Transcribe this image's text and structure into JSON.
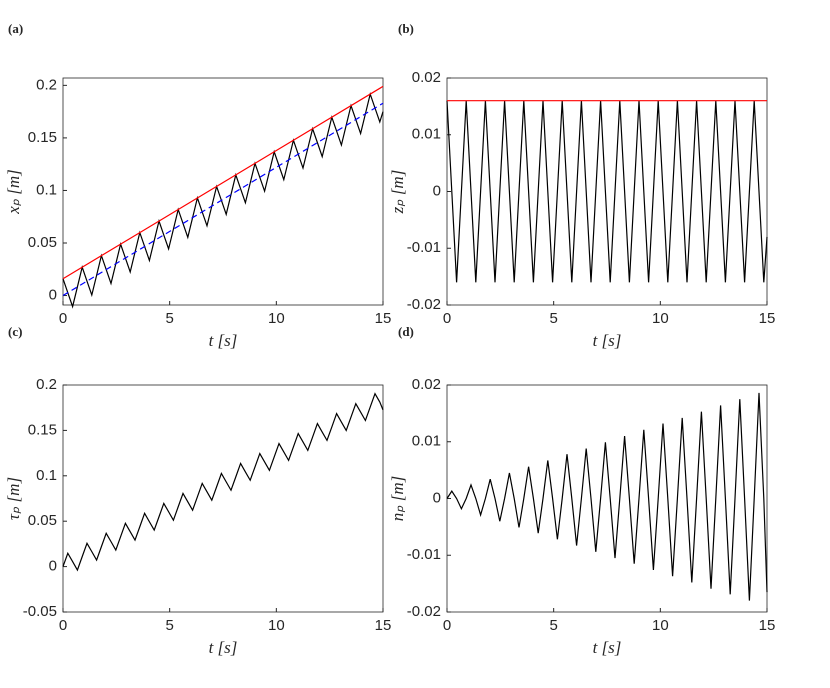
{
  "chart_data": [
    {
      "type": "line",
      "label": "(a)",
      "xlabel": "t [s]",
      "ylabel": "xₚ [m]",
      "xlim": [
        0,
        15
      ],
      "ylim": [
        -0.009,
        0.207
      ],
      "xticks": [
        0,
        5,
        10,
        15
      ],
      "yticks": [
        0,
        0.05,
        0.1,
        0.15,
        0.2
      ],
      "series": [
        {
          "color": "#000000",
          "style": "solid",
          "x": [
            0,
            0.225,
            0.45,
            0.675,
            0.9,
            1.125,
            1.35,
            1.575,
            1.8,
            2.025,
            2.25,
            2.475,
            2.7,
            2.925,
            3.15,
            3.375,
            3.6,
            3.825,
            4.05,
            4.275,
            4.5,
            4.725,
            4.95,
            5.175,
            5.4,
            5.625,
            5.85,
            6.075,
            6.3,
            6.525,
            6.75,
            6.975,
            7.2,
            7.425,
            7.65,
            7.875,
            8.1,
            8.325,
            8.55,
            8.775,
            9,
            9.225,
            9.45,
            9.675,
            9.9,
            10.125,
            10.35,
            10.575,
            10.8,
            11.025,
            11.25,
            11.475,
            11.7,
            11.925,
            12.15,
            12.375,
            12.6,
            12.825,
            13.05,
            13.275,
            13.5,
            13.725,
            13.95,
            14.175,
            14.4,
            14.625,
            14.85,
            15
          ],
          "values": [
            0.016,
            0.0027,
            -0.0105,
            0.0082,
            0.027,
            0.0137,
            0.0005,
            0.0192,
            0.038,
            0.0247,
            0.0115,
            0.0302,
            0.0489,
            0.0357,
            0.0224,
            0.0412,
            0.0599,
            0.0467,
            0.0334,
            0.0522,
            0.0709,
            0.0576,
            0.0444,
            0.0631,
            0.0819,
            0.0686,
            0.0554,
            0.0741,
            0.0929,
            0.0796,
            0.0664,
            0.0851,
            0.1038,
            0.0906,
            0.0773,
            0.0961,
            0.1148,
            0.1016,
            0.0883,
            0.1071,
            0.1258,
            0.1125,
            0.0993,
            0.118,
            0.1368,
            0.1235,
            0.1103,
            0.129,
            0.1478,
            0.1345,
            0.1213,
            0.14,
            0.1587,
            0.1455,
            0.1322,
            0.151,
            0.1697,
            0.1565,
            0.1432,
            0.162,
            0.1807,
            0.1674,
            0.1542,
            0.1729,
            0.1917,
            0.1784,
            0.1652,
            0.175
          ]
        },
        {
          "color": "#ff0000",
          "style": "solid",
          "x": [
            0,
            15
          ],
          "values": [
            0.016,
            0.199
          ]
        },
        {
          "color": "#0000ff",
          "style": "dashed",
          "x": [
            0,
            15
          ],
          "values": [
            0,
            0.183
          ]
        }
      ]
    },
    {
      "type": "line",
      "label": "(b)",
      "xlabel": "t [s]",
      "ylabel": "zₚ [m]",
      "xlim": [
        0,
        15
      ],
      "ylim": [
        -0.02,
        0.02
      ],
      "xticks": [
        0,
        5,
        10,
        15
      ],
      "yticks": [
        -0.02,
        -0.01,
        0,
        0.01,
        0.02
      ],
      "series": [
        {
          "color": "#000000",
          "style": "solid",
          "x": [
            0,
            0.225,
            0.45,
            0.675,
            0.9,
            1.125,
            1.35,
            1.575,
            1.8,
            2.025,
            2.25,
            2.475,
            2.7,
            2.925,
            3.15,
            3.375,
            3.6,
            3.825,
            4.05,
            4.275,
            4.5,
            4.725,
            4.95,
            5.175,
            5.4,
            5.625,
            5.85,
            6.075,
            6.3,
            6.525,
            6.75,
            6.975,
            7.2,
            7.425,
            7.65,
            7.875,
            8.1,
            8.325,
            8.55,
            8.775,
            9,
            9.225,
            9.45,
            9.675,
            9.9,
            10.125,
            10.35,
            10.575,
            10.8,
            11.025,
            11.25,
            11.475,
            11.7,
            11.925,
            12.15,
            12.375,
            12.6,
            12.825,
            13.05,
            13.275,
            13.5,
            13.725,
            13.95,
            14.175,
            14.4,
            14.625,
            14.85,
            15
          ],
          "values": [
            0.016,
            0,
            -0.016,
            0,
            0.016,
            0,
            -0.016,
            0,
            0.016,
            0,
            -0.016,
            0,
            0.016,
            0,
            -0.016,
            0,
            0.016,
            0,
            -0.016,
            0,
            0.016,
            0,
            -0.016,
            0,
            0.016,
            0,
            -0.016,
            0,
            0.016,
            0,
            -0.016,
            0,
            0.016,
            0,
            -0.016,
            0,
            0.016,
            0,
            -0.016,
            0,
            0.016,
            0,
            -0.016,
            0,
            0.016,
            0,
            -0.016,
            0,
            0.016,
            0,
            -0.016,
            0,
            0.016,
            0,
            -0.016,
            0,
            0.016,
            0,
            -0.016,
            0,
            0.016,
            0,
            -0.016,
            0,
            0.016,
            0,
            -0.016,
            -0.008
          ]
        },
        {
          "color": "#ff0000",
          "style": "solid",
          "x": [
            0,
            15
          ],
          "values": [
            0.016,
            0.016
          ]
        }
      ]
    },
    {
      "type": "line",
      "label": "(c)",
      "xlabel": "t [s]",
      "ylabel": "τₚ [m]",
      "xlim": [
        0,
        15
      ],
      "ylim": [
        -0.05,
        0.2
      ],
      "xticks": [
        0,
        5,
        10,
        15
      ],
      "yticks": [
        -0.05,
        0,
        0.05,
        0.1,
        0.15,
        0.2
      ],
      "series": [
        {
          "color": "#000000",
          "style": "solid",
          "x": [
            0,
            0.225,
            0.45,
            0.675,
            0.9,
            1.125,
            1.35,
            1.575,
            1.8,
            2.025,
            2.25,
            2.475,
            2.7,
            2.925,
            3.15,
            3.375,
            3.6,
            3.825,
            4.05,
            4.275,
            4.5,
            4.725,
            4.95,
            5.175,
            5.4,
            5.625,
            5.85,
            6.075,
            6.3,
            6.525,
            6.75,
            6.975,
            7.2,
            7.425,
            7.65,
            7.875,
            8.1,
            8.325,
            8.55,
            8.775,
            9,
            9.225,
            9.45,
            9.675,
            9.9,
            10.125,
            10.35,
            10.575,
            10.8,
            11.025,
            11.25,
            11.475,
            11.7,
            11.925,
            12.15,
            12.375,
            12.6,
            12.825,
            13.05,
            13.275,
            13.5,
            13.725,
            13.95,
            14.175,
            14.4,
            14.625,
            14.85,
            15
          ],
          "values": [
            0,
            0.0147,
            0.0055,
            -0.0038,
            0.011,
            0.0257,
            0.0165,
            0.0072,
            0.022,
            0.0367,
            0.0275,
            0.0182,
            0.0329,
            0.0477,
            0.0384,
            0.0292,
            0.0439,
            0.0587,
            0.0494,
            0.0402,
            0.0549,
            0.0696,
            0.0604,
            0.0511,
            0.0659,
            0.0806,
            0.0714,
            0.0621,
            0.0769,
            0.0916,
            0.0824,
            0.0731,
            0.0878,
            0.1026,
            0.0933,
            0.0841,
            0.0988,
            0.1136,
            0.1043,
            0.0951,
            0.1098,
            0.1245,
            0.1153,
            0.106,
            0.1208,
            0.1355,
            0.1263,
            0.117,
            0.1318,
            0.1465,
            0.1373,
            0.128,
            0.1427,
            0.1575,
            0.1482,
            0.139,
            0.1537,
            0.1685,
            0.1592,
            0.15,
            0.1647,
            0.1794,
            0.1702,
            0.1609,
            0.1757,
            0.1904,
            0.1812,
            0.1726
          ]
        }
      ]
    },
    {
      "type": "line",
      "label": "(d)",
      "xlabel": "t [s]",
      "ylabel": "nₚ [m]",
      "xlim": [
        0,
        15
      ],
      "ylim": [
        -0.02,
        0.02
      ],
      "xticks": [
        0,
        5,
        10,
        15
      ],
      "yticks": [
        -0.02,
        -0.01,
        0,
        0.01,
        0.02
      ],
      "series": [
        {
          "color": "#000000",
          "style": "solid",
          "x": [
            0,
            0.225,
            0.45,
            0.675,
            0.9,
            1.125,
            1.35,
            1.575,
            1.8,
            2.025,
            2.25,
            2.475,
            2.7,
            2.925,
            3.15,
            3.375,
            3.6,
            3.825,
            4.05,
            4.275,
            4.5,
            4.725,
            4.95,
            5.175,
            5.4,
            5.625,
            5.85,
            6.075,
            6.3,
            6.525,
            6.75,
            6.975,
            7.2,
            7.425,
            7.65,
            7.875,
            8.1,
            8.325,
            8.55,
            8.775,
            9,
            9.225,
            9.45,
            9.675,
            9.9,
            10.125,
            10.35,
            10.575,
            10.8,
            11.025,
            11.25,
            11.475,
            11.7,
            11.925,
            12.15,
            12.375,
            12.6,
            12.825,
            13.05,
            13.275,
            13.5,
            13.725,
            13.95,
            14.175,
            14.4,
            14.625,
            14.85,
            15
          ],
          "values": [
            0,
            0.0013,
            0,
            -0.0018,
            0,
            0.0024,
            0,
            -0.0029,
            0,
            0.0034,
            0,
            -0.004,
            0,
            0.0045,
            0,
            -0.0051,
            0,
            0.0056,
            0,
            -0.0061,
            0,
            0.0067,
            0,
            -0.0072,
            0,
            0.0078,
            0,
            -0.0083,
            0,
            0.0088,
            0,
            -0.0094,
            0,
            0.0099,
            0,
            -0.0105,
            0,
            0.011,
            0,
            -0.0115,
            0,
            0.0121,
            0,
            -0.0126,
            0,
            0.0132,
            0,
            -0.0137,
            0,
            0.0142,
            0,
            -0.0148,
            0,
            0.0153,
            0,
            -0.0159,
            0,
            0.0164,
            0,
            -0.0169,
            0,
            0.0175,
            0,
            -0.018,
            0,
            0.0186,
            0,
            -0.0165
          ]
        }
      ]
    }
  ]
}
